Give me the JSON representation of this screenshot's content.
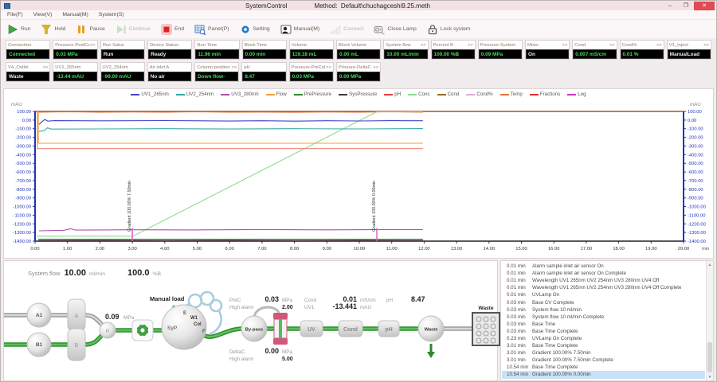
{
  "window": {
    "title": "SystemControl",
    "method_label": "Method:",
    "method_value": "Default\\chuchagceshi9.25.meth",
    "minimize": "–",
    "maximize": "❐",
    "close": "✕"
  },
  "menu": {
    "items": [
      "File(F)",
      "View(V)",
      "Manual(M)",
      "System(S)"
    ]
  },
  "toolbar": {
    "buttons": [
      {
        "label": "Run",
        "icon": "run-icon",
        "enabled": true
      },
      {
        "label": "Hold",
        "icon": "hold-icon",
        "enabled": true
      },
      {
        "label": "Pause",
        "icon": "pause-icon",
        "enabled": true
      },
      {
        "label": "Continue",
        "icon": "continue-icon",
        "enabled": false
      },
      {
        "label": "End",
        "icon": "end-icon",
        "enabled": true
      },
      {
        "label": "Panel(P)",
        "icon": "panel-icon",
        "enabled": true
      },
      {
        "label": "Setting",
        "icon": "setting-icon",
        "enabled": true
      },
      {
        "label": "Manual(M)",
        "icon": "manual-icon",
        "enabled": true
      },
      {
        "label": "Connect",
        "icon": "connect-icon",
        "enabled": false
      },
      {
        "label": "Close Lamp",
        "icon": "close-lamp-icon",
        "enabled": true
      },
      {
        "label": "Lock system",
        "icon": "lock-icon",
        "enabled": true
      }
    ]
  },
  "status_grid": {
    "row1": [
      {
        "label": "Connection",
        "arrows": false,
        "value": "Connected",
        "white": false
      },
      {
        "label": "Pressure-PostCc",
        "arrows": true,
        "value": "0.03 MPa",
        "white": false
      },
      {
        "label": "Run Satus",
        "arrows": false,
        "value": "Run",
        "white": true
      },
      {
        "label": "Device Status",
        "arrows": false,
        "value": "Ready",
        "white": true
      },
      {
        "label": "Run Time",
        "arrows": false,
        "value": "11.96 min",
        "white": false
      },
      {
        "label": "Block Time",
        "arrows": false,
        "value": "0.00 min",
        "white": false
      },
      {
        "label": "Volume",
        "arrows": false,
        "value": "119.18 mL",
        "white": false
      },
      {
        "label": "Block Volume",
        "arrows": false,
        "value": "0.00 mL",
        "white": false
      },
      {
        "label": "System flow",
        "arrows": true,
        "value": "10.00 mL/min",
        "white": false
      },
      {
        "label": "Percent B",
        "arrows": true,
        "value": "100.00 %B",
        "white": false
      },
      {
        "label": "Pressure-System",
        "arrows": false,
        "value": "0.09 MPa",
        "white": false
      },
      {
        "label": "Mixer",
        "arrows": true,
        "value": "On",
        "white": true
      },
      {
        "label": "Cond",
        "arrows": true,
        "value": "0.007 mS/cm",
        "white": false
      },
      {
        "label": "Cond%",
        "arrows": true,
        "value": "0.01 %",
        "white": false
      },
      {
        "label": "V1_Inject",
        "arrows": true,
        "value": "ManualLoad",
        "white": true
      }
    ],
    "row2": [
      {
        "label": "V4_Outlet",
        "arrows": true,
        "value": "Waste",
        "white": true
      },
      {
        "label": "UV1_265nm",
        "arrows": false,
        "value": "-13.44 mAU",
        "white": false
      },
      {
        "label": "UV2_254nm",
        "arrows": false,
        "value": "-99.00 mAU",
        "white": false
      },
      {
        "label": "Air inlet A",
        "arrows": false,
        "value": "No air",
        "white": true
      },
      {
        "label": "Column position",
        "arrows": true,
        "value": "Down flow-",
        "white": false
      },
      {
        "label": "pH",
        "arrows": false,
        "value": "8.47",
        "white": false
      },
      {
        "label": "Pressure-PreCol",
        "arrows": true,
        "value": "0.03 MPa",
        "white": false
      },
      {
        "label": "Prissure-DeltaC",
        "arrows": true,
        "value": "0.00 MPa",
        "white": false
      }
    ]
  },
  "chart_data": {
    "type": "line",
    "xlabel": "min",
    "ylabel": "mAU",
    "xlim": [
      0,
      20
    ],
    "xtick_step": 1,
    "ylim": [
      -1400,
      100
    ],
    "ytick_step": 100,
    "legend": [
      {
        "name": "UV1_265nm",
        "color": "#4444cc"
      },
      {
        "name": "UV2_254nm",
        "color": "#3aa8a8"
      },
      {
        "name": "UV3_280nm",
        "color": "#b050b0"
      },
      {
        "name": "Flow",
        "color": "#f0a038"
      },
      {
        "name": "PrePressure",
        "color": "#2e8b2e"
      },
      {
        "name": "SysPressure",
        "color": "#3a3a3a"
      },
      {
        "name": "pH",
        "color": "#e04040"
      },
      {
        "name": "Conc",
        "color": "#8ade8a"
      },
      {
        "name": "Cond",
        "color": "#9a6a22"
      },
      {
        "name": "Cond%",
        "color": "#e0a8e0"
      },
      {
        "name": "Temp",
        "color": "#e2703a"
      },
      {
        "name": "Fractions",
        "color": "#e03030"
      },
      {
        "name": "Log",
        "color": "#cc33cc"
      }
    ],
    "series": [
      {
        "name": "Temp",
        "color": "#e2703a",
        "points": [
          [
            0.1,
            92
          ],
          [
            1,
            95
          ],
          [
            2,
            91
          ],
          [
            3,
            94
          ],
          [
            4,
            91
          ],
          [
            5,
            95
          ],
          [
            6,
            91
          ],
          [
            7,
            93
          ],
          [
            8,
            90
          ],
          [
            9,
            94
          ],
          [
            10,
            91
          ],
          [
            11,
            95
          ],
          [
            11.96,
            92
          ]
        ]
      },
      {
        "name": "Conc",
        "color": "#8ade8a",
        "points": [
          [
            0.05,
            -1342
          ],
          [
            3.02,
            -1342
          ],
          [
            10.54,
            96
          ],
          [
            11.96,
            96
          ]
        ]
      },
      {
        "name": "Flow",
        "color": "#f0a038",
        "points": [
          [
            0.1,
            100
          ],
          [
            0.1,
            -268
          ],
          [
            11.96,
            -268
          ]
        ]
      },
      {
        "name": "pH",
        "color": "#ef8272",
        "points": [
          [
            0.07,
            100
          ],
          [
            0.07,
            -330
          ],
          [
            11.96,
            -330
          ]
        ]
      },
      {
        "name": "UV1_265nm",
        "color": "#4444cc",
        "points": [
          [
            0.12,
            -50
          ],
          [
            0.22,
            -18
          ],
          [
            0.3,
            6
          ],
          [
            0.4,
            -12
          ],
          [
            0.6,
            -7
          ],
          [
            2,
            -9
          ],
          [
            4,
            -6
          ],
          [
            6,
            -11
          ],
          [
            7,
            -8
          ],
          [
            8,
            -12
          ],
          [
            9,
            -8
          ],
          [
            10,
            -10
          ],
          [
            11,
            -7
          ],
          [
            11.96,
            -8
          ]
        ]
      },
      {
        "name": "UV2_254nm",
        "color": "#3aa8a8",
        "points": [
          [
            0.12,
            -132
          ],
          [
            0.3,
            -120
          ],
          [
            0.38,
            -90
          ],
          [
            0.5,
            -104
          ],
          [
            2,
            -102
          ],
          [
            4,
            -100
          ],
          [
            6,
            -103
          ],
          [
            8,
            -100
          ],
          [
            10,
            -102
          ],
          [
            11.96,
            -99
          ]
        ]
      },
      {
        "name": "UV3_280nm",
        "color": "#b050b0",
        "points": [
          [
            0.12,
            -1280
          ],
          [
            0.9,
            -1274
          ],
          [
            1.1,
            -1257
          ],
          [
            1.25,
            -1272
          ],
          [
            3,
            -1268
          ],
          [
            5,
            -1270
          ],
          [
            7,
            -1266
          ],
          [
            9,
            -1269
          ],
          [
            11,
            -1266
          ],
          [
            11.96,
            -1267
          ]
        ]
      },
      {
        "name": "PrePressure",
        "color": "#2e8b2e",
        "points": [
          [
            0.1,
            -1378
          ],
          [
            11.96,
            -1378
          ]
        ]
      },
      {
        "name": "Cond",
        "color": "#9a6a22",
        "points": [
          [
            0.1,
            -1386
          ],
          [
            11.96,
            -1386
          ]
        ]
      },
      {
        "name": "Cond%",
        "color": "#e0a8e0",
        "points": [
          [
            0.1,
            -1391
          ],
          [
            11.96,
            -1391
          ]
        ]
      },
      {
        "name": "SysPressure",
        "color": "#3a3a3a",
        "points": [
          [
            0.1,
            -1396
          ],
          [
            2,
            -1394
          ],
          [
            4,
            -1397
          ],
          [
            6,
            -1394
          ],
          [
            8,
            -1397
          ],
          [
            10,
            -1394
          ],
          [
            11.96,
            -1396
          ]
        ]
      }
    ],
    "annotations": [
      {
        "x": 3.0,
        "label": "Gradient 100.00% 7.50min",
        "color": "#dd55cc"
      },
      {
        "x": 10.54,
        "label": "Gradient 100.00% 0.00min",
        "color": "#dd55cc"
      }
    ]
  },
  "flow": {
    "header": {
      "label": "System flow",
      "flow_value": "10.00",
      "flow_unit": "ml/min",
      "percent_value": "100.0",
      "percent_unit": "%B"
    },
    "pump_pressure": "0.09",
    "pump_pressure_unit": "MPa",
    "manual_load": "Manual load",
    "a1": "A1",
    "b1": "B1",
    "valve_a": "A",
    "valve_b": "B",
    "pump": "P",
    "syp": "SyP",
    "port_e": "E",
    "port_w1": "W1",
    "port_col": "Col",
    "port_f": "F",
    "bypass": "By-pass",
    "uv": "UV",
    "cond": "Cond",
    "ph": "pH",
    "waste_valve": "Waste",
    "waste_block": "Waste",
    "prec": {
      "l1": "PreC",
      "l2": "High alarm",
      "value": "0.03",
      "unit": "MPa",
      "alarm": "2.00"
    },
    "conduv": {
      "l1": "Cond",
      "l2": "UV1",
      "cond_value": "0.01",
      "cond_unit": "mS/cm",
      "uv_value": "-13.441",
      "uv_unit": "mAU"
    },
    "ph_sensor": {
      "label": "pH",
      "value": "8.47"
    },
    "deltac": {
      "l1": "DeltaC",
      "l2": "High alarm",
      "value": "0.00",
      "unit": "MPa",
      "alarm": "5.00"
    }
  },
  "log": {
    "selected_index": 15,
    "entries": [
      {
        "time": "0.01 min",
        "text": "Alarm sample inlet air sensor On"
      },
      {
        "time": "0.01 min",
        "text": "Alarm sample inlet air sensor On Complete"
      },
      {
        "time": "0.01 min",
        "text": "Wavelength UV1 265nm UV2 254nm UV3 280nm UV4 Off"
      },
      {
        "time": "0.01 min",
        "text": "Wavelength UV1 265nm UV2 254nm UV3 280nm UV4 Off Complete"
      },
      {
        "time": "0.01 min",
        "text": "UVLamp On"
      },
      {
        "time": "0.03 min",
        "text": "Base  CV Complete"
      },
      {
        "time": "0.03 min",
        "text": "System flow  10 ml/min"
      },
      {
        "time": "0.03 min",
        "text": "System flow  10 ml/min Complete"
      },
      {
        "time": "0.03 min",
        "text": "Base  Time"
      },
      {
        "time": "0.03 min",
        "text": "Base  Time Complete"
      },
      {
        "time": "0.23 min",
        "text": "UVLamp On Complete"
      },
      {
        "time": "3.01 min",
        "text": "Base  Time Complete"
      },
      {
        "time": "3.01 min",
        "text": "Gradient  100.00%  7.50min"
      },
      {
        "time": "3.01 min",
        "text": "Gradient  100.00%  7.50min Complete"
      },
      {
        "time": "10.54 min",
        "text": "Base  Time Complete"
      },
      {
        "time": "10.54 min",
        "text": "Gradient  100.00%  0.00min"
      }
    ]
  }
}
